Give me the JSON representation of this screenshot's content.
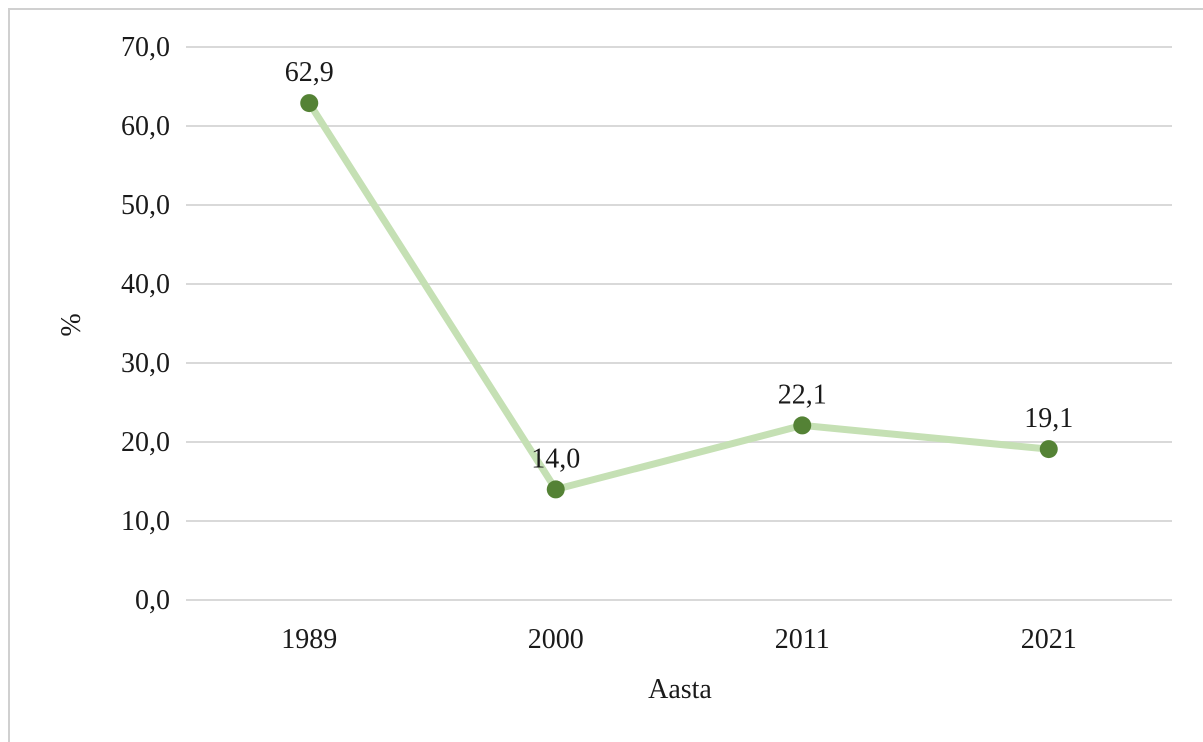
{
  "chart_data": {
    "type": "line",
    "categories": [
      "1989",
      "2000",
      "2011",
      "2021"
    ],
    "series": [
      {
        "values": [
          62.9,
          14.0,
          22.1,
          19.1
        ]
      }
    ],
    "data_labels": [
      "62,9",
      "14,0",
      "22,1",
      "19,1"
    ],
    "xlabel": "Aasta",
    "ylabel": "%",
    "ylim": [
      0,
      70
    ],
    "yticks": [
      0,
      10,
      20,
      30,
      40,
      50,
      60,
      70
    ],
    "ytick_labels": [
      "0,0",
      "10,0",
      "20,0",
      "30,0",
      "40,0",
      "50,0",
      "60,0",
      "70,0"
    ],
    "grid": true,
    "legend": "none",
    "colors": {
      "line": "#c5e0b4",
      "marker": "#548235",
      "grid": "#d9d9d9"
    }
  }
}
